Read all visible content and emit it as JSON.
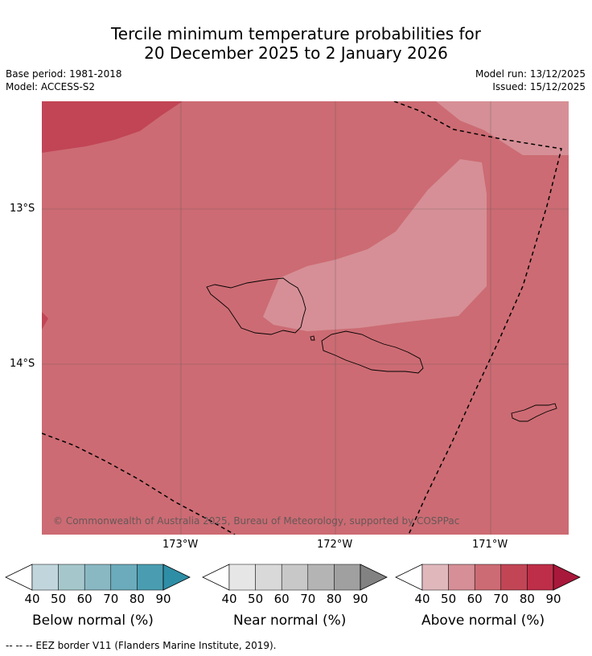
{
  "title": {
    "line1": "Tercile minimum temperature probabilities for",
    "line2": "20 December 2025 to 2 January 2026"
  },
  "meta": {
    "base_period": "Base period: 1981-2018",
    "model": "Model: ACCESS-S2",
    "model_run": "Model run: 13/12/2025",
    "issued": "Issued: 15/12/2025"
  },
  "map": {
    "lat_labels": [
      "13°S",
      "14°S"
    ],
    "lon_labels": [
      "173°W",
      "172°W",
      "171°W"
    ],
    "copyright": "© Commonwealth of Australia 2025, Bureau of Meteorology, supported by COSPPac",
    "colors": {
      "base_70": "#cc6b73",
      "zone_60": "#d68f96",
      "zone_80": "#c14555",
      "eez": "#000000",
      "coast": "#000000"
    }
  },
  "legend": {
    "ticks": [
      "40",
      "50",
      "60",
      "70",
      "80",
      "90"
    ],
    "below": {
      "title": "Below normal (%)",
      "colors": [
        "#ffffff",
        "#c0d6dc",
        "#a5c7cc",
        "#89b8c3",
        "#6babbb",
        "#4a9db0",
        "#2e8ea6"
      ]
    },
    "near": {
      "title": "Near normal (%)",
      "colors": [
        "#ffffff",
        "#e6e6e6",
        "#d9d9d9",
        "#c8c8c8",
        "#b4b4b4",
        "#a0a0a0",
        "#828282"
      ]
    },
    "above": {
      "title": "Above normal (%)",
      "colors": [
        "#ffffff",
        "#e0b8bc",
        "#d68f96",
        "#cc6b73",
        "#c14555",
        "#be2e48",
        "#a8183a"
      ]
    }
  },
  "footer": "--  --  -- EEZ border V11 (Flanders Marine Institute, 2019)."
}
